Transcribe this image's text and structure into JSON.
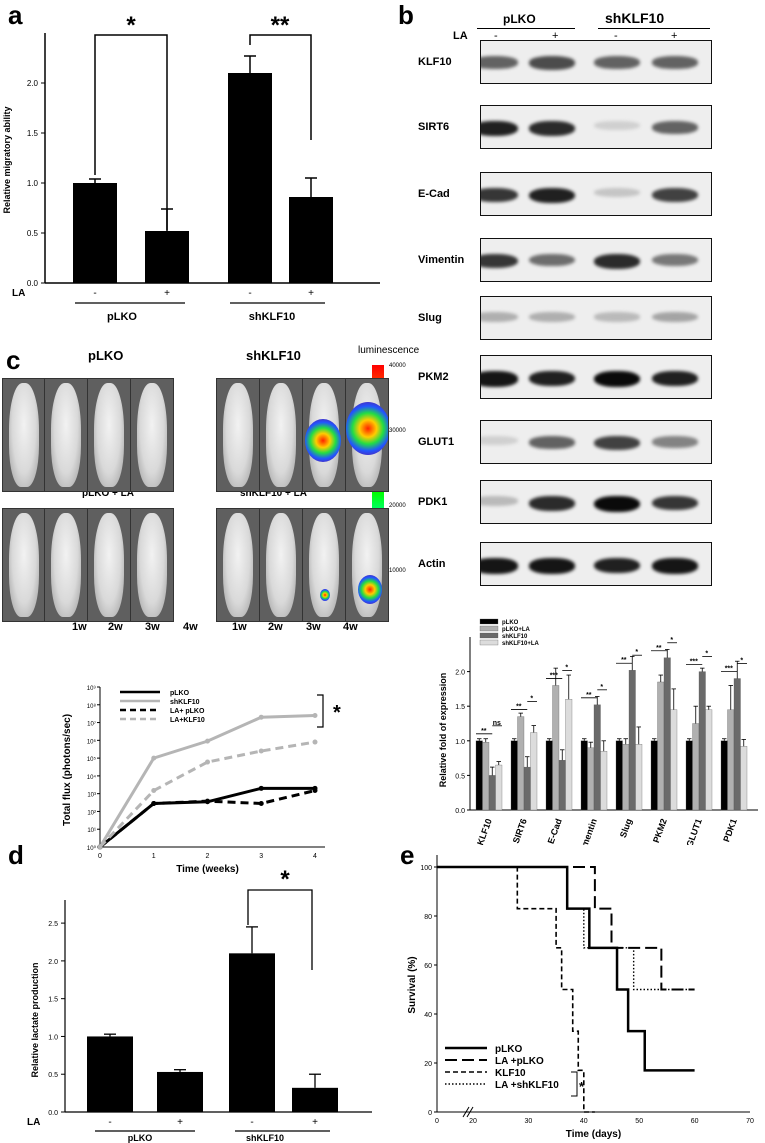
{
  "panel_labels": {
    "a": "a",
    "b": "b",
    "c": "c",
    "d": "d",
    "e": "e"
  },
  "panel_a": {
    "ylabel": "Relative migratory ability",
    "la_label": "LA",
    "groups": [
      "pLKO",
      "shKLF10"
    ],
    "signs": [
      "-",
      "+",
      "-",
      "+"
    ],
    "sig_labels": [
      "*",
      "**"
    ],
    "chart_data": {
      "type": "bar",
      "categories": [
        "pLKO -",
        "pLKO +",
        "shKLF10 -",
        "shKLF10 +"
      ],
      "values": [
        1.0,
        0.52,
        2.1,
        0.86
      ],
      "errors": [
        0.04,
        0.22,
        0.17,
        0.19
      ],
      "ylim": [
        0,
        2.5
      ],
      "yticks": [
        "0.0",
        "0.5",
        "1.0",
        "1.5",
        "2.0"
      ]
    }
  },
  "panel_b": {
    "col_groups": [
      "pLKO",
      "shKLF10"
    ],
    "la_label": "LA",
    "signs": [
      "-",
      "+",
      "-",
      "+"
    ],
    "blots": [
      {
        "name": "KLF10",
        "intensity": [
          0.6,
          0.7,
          0.6,
          0.6
        ]
      },
      {
        "name": "SIRT6",
        "intensity": [
          0.9,
          0.85,
          0.1,
          0.6
        ]
      },
      {
        "name": "E-Cad",
        "intensity": [
          0.8,
          0.9,
          0.15,
          0.75
        ]
      },
      {
        "name": "Vimentin",
        "intensity": [
          0.8,
          0.55,
          0.85,
          0.5
        ]
      },
      {
        "name": "Slug",
        "intensity": [
          0.25,
          0.25,
          0.2,
          0.3
        ]
      },
      {
        "name": "PKM2",
        "intensity": [
          0.95,
          0.9,
          1.0,
          0.9
        ]
      },
      {
        "name": "GLUT1",
        "intensity": [
          0.1,
          0.6,
          0.75,
          0.45
        ]
      },
      {
        "name": "PDK1",
        "intensity": [
          0.2,
          0.85,
          1.0,
          0.8
        ]
      },
      {
        "name": "Actin",
        "intensity": [
          0.95,
          0.95,
          0.9,
          0.95
        ]
      }
    ]
  },
  "panel_b_chart": {
    "ylabel": "Relative fold of expression",
    "legend": [
      "pLKO",
      "pLKO+LA",
      "shKLF10",
      "shKLF10+LA"
    ],
    "colors": [
      "#000000",
      "#b0b0b0",
      "#6a6a6a",
      "#dcdcdc"
    ],
    "sig": [
      "**",
      "ns",
      "**",
      "*",
      "***",
      "*",
      "**",
      "*",
      "**",
      "*",
      "**",
      "*",
      "***",
      "*",
      "***",
      "*"
    ],
    "chart_data": {
      "type": "bar",
      "categories": [
        "KLF10",
        "SIRT6",
        "E-Cad",
        "Vimentin",
        "Slug",
        "PKM2",
        "GLUT1",
        "PDK1"
      ],
      "series": [
        {
          "name": "pLKO",
          "values": [
            1,
            1,
            1,
            1,
            1,
            1,
            1,
            1
          ]
        },
        {
          "name": "pLKO+LA",
          "values": [
            0.98,
            1.35,
            1.8,
            0.9,
            0.95,
            1.85,
            1.25,
            1.45
          ]
        },
        {
          "name": "shKLF10",
          "values": [
            0.5,
            0.62,
            0.72,
            1.52,
            2.02,
            2.2,
            2.0,
            1.9
          ]
        },
        {
          "name": "shKLF10+LA",
          "values": [
            0.65,
            1.12,
            1.6,
            0.85,
            0.95,
            1.45,
            1.45,
            0.92
          ]
        }
      ],
      "errors": [
        [
          0.03,
          0.03,
          0.03,
          0.03,
          0.03,
          0.03,
          0.03,
          0.03
        ],
        [
          0.05,
          0.05,
          0.25,
          0.08,
          0.08,
          0.1,
          0.25,
          0.35
        ],
        [
          0.12,
          0.15,
          0.15,
          0.12,
          0.2,
          0.12,
          0.05,
          0.25
        ],
        [
          0.05,
          0.1,
          0.35,
          0.15,
          0.25,
          0.3,
          0.05,
          0.1
        ]
      ],
      "ylim": [
        0,
        2.5
      ],
      "yticks": [
        "0.0",
        "0.5",
        "1.0",
        "1.5",
        "2.0"
      ]
    }
  },
  "panel_c": {
    "group_titles": [
      "pLKO",
      "shKLF10",
      "pLKO + LA",
      "shKLF10 + LA"
    ],
    "weeks": [
      "1w",
      "2w",
      "3w",
      "4w",
      "1w",
      "2w",
      "3w",
      "4w"
    ],
    "scale_title": "luminescence",
    "scale_ticks": [
      "40000",
      "30000",
      "20000",
      "10000"
    ],
    "ylabel": "Total flux (photons/sec)",
    "xlabel": "Time (weeks)",
    "sig": "*",
    "yticks": [
      "10⁰",
      "10¹",
      "10²",
      "10³",
      "10⁴",
      "10⁵",
      "10⁶",
      "10⁷",
      "10⁸",
      "10⁹"
    ],
    "xticks": [
      "0",
      "1",
      "2",
      "3",
      "4"
    ],
    "chart_data": {
      "type": "line",
      "x": [
        0,
        1,
        2,
        3,
        4
      ],
      "yscale": "log",
      "ylim": [
        1,
        1000000000
      ],
      "series": [
        {
          "name": "pLKO",
          "values": [
            1,
            280,
            350,
            2000,
            2000
          ],
          "color": "#000000",
          "dash": "solid"
        },
        {
          "name": "shKLF10",
          "values": [
            1,
            100000,
            900000,
            20000000,
            25000000
          ],
          "color": "#b5b5b5",
          "dash": "solid"
        },
        {
          "name": "LA+ pLKO",
          "values": [
            1,
            280,
            380,
            280,
            1500
          ],
          "color": "#000000",
          "dash": "dashed"
        },
        {
          "name": "LA+KLF10",
          "values": [
            1,
            1500,
            60000,
            250000,
            800000
          ],
          "color": "#b5b5b5",
          "dash": "dashed"
        }
      ]
    }
  },
  "panel_d": {
    "ylabel": "Relative lactate production",
    "la_label": "LA",
    "groups": [
      "pLKO",
      "shKLF10"
    ],
    "signs": [
      "-",
      "+",
      "-",
      "+"
    ],
    "sig": "*",
    "chart_data": {
      "type": "bar",
      "categories": [
        "pLKO -",
        "pLKO +",
        "shKLF10 -",
        "shKLF10 +"
      ],
      "values": [
        1.0,
        0.53,
        2.1,
        0.32
      ],
      "errors": [
        0.03,
        0.03,
        0.35,
        0.18
      ],
      "ylim": [
        0,
        2.7
      ],
      "yticks": [
        "0.0",
        "0.5",
        "1.0",
        "1.5",
        "2.0",
        "2.5"
      ]
    }
  },
  "panel_e": {
    "ylabel": "Survival (%)",
    "xlabel": "Time (days)",
    "sig": "*",
    "xticks": [
      "0",
      "20",
      "30",
      "40",
      "50",
      "60",
      "70"
    ],
    "yticks": [
      "0",
      "20",
      "40",
      "60",
      "80",
      "100"
    ],
    "chart_data": {
      "type": "line",
      "step": true,
      "xlim": [
        0,
        70
      ],
      "ylim": [
        0,
        100
      ],
      "series": [
        {
          "name": "pLKO",
          "points": [
            [
              0,
              100
            ],
            [
              37,
              100
            ],
            [
              37,
              83
            ],
            [
              41,
              83
            ],
            [
              41,
              67
            ],
            [
              46,
              67
            ],
            [
              46,
              50
            ],
            [
              48,
              50
            ],
            [
              48,
              33
            ],
            [
              51,
              33
            ],
            [
              51,
              17
            ],
            [
              60,
              17
            ]
          ],
          "dash": "solid"
        },
        {
          "name": "LA +pLKO",
          "points": [
            [
              0,
              100
            ],
            [
              42,
              100
            ],
            [
              42,
              83
            ],
            [
              45,
              83
            ],
            [
              45,
              67
            ],
            [
              54,
              67
            ],
            [
              54,
              50
            ],
            [
              60,
              50
            ]
          ],
          "dash": "longdash"
        },
        {
          "name": "KLF10",
          "points": [
            [
              0,
              100
            ],
            [
              28,
              100
            ],
            [
              28,
              83
            ],
            [
              35,
              83
            ],
            [
              35,
              67
            ],
            [
              36,
              67
            ],
            [
              36,
              50
            ],
            [
              38,
              50
            ],
            [
              38,
              33
            ],
            [
              39,
              33
            ],
            [
              39,
              17
            ],
            [
              40,
              17
            ],
            [
              40,
              0
            ],
            [
              42,
              0
            ]
          ],
          "dash": "dashed"
        },
        {
          "name": "LA +shKLF10",
          "points": [
            [
              0,
              100
            ],
            [
              37,
              100
            ],
            [
              37,
              83
            ],
            [
              40,
              83
            ],
            [
              40,
              67
            ],
            [
              49,
              67
            ],
            [
              49,
              50
            ],
            [
              60,
              50
            ]
          ],
          "dash": "dotted"
        }
      ]
    }
  }
}
